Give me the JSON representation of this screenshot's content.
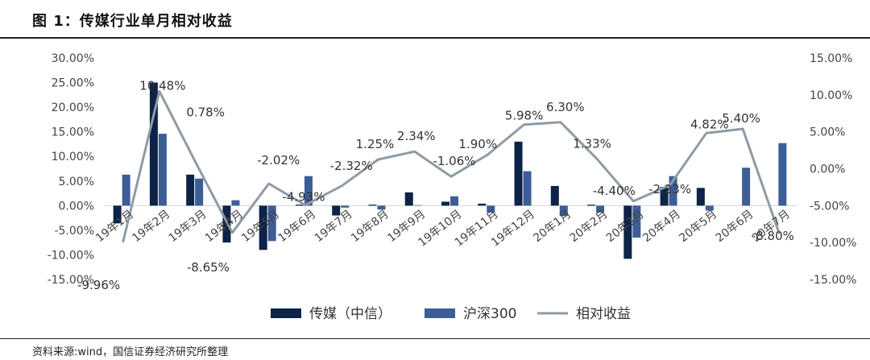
{
  "title": "图 1：传媒行业单月相对收益",
  "source": "资料来源:wind，国信证券经济研究所整理",
  "chart_data": {
    "type": "bar",
    "categories": [
      "19年1月",
      "19年2月",
      "19年3月",
      "19年4月",
      "19年5月",
      "19年6月",
      "19年7月",
      "19年8月",
      "19年9月",
      "19年10月",
      "19年11月",
      "19年12月",
      "20年1月",
      "20年2月",
      "20年3月",
      "20年4月",
      "20年5月",
      "20年6月",
      "20年7月"
    ],
    "series": [
      {
        "name": "传媒（中信）",
        "type": "bar",
        "axis": "left",
        "color": "#0d2347",
        "values": [
          -3.6,
          25.0,
          6.3,
          -7.5,
          -9.0,
          0.2,
          -2.0,
          0.2,
          2.7,
          0.8,
          0.4,
          13.0,
          4.0,
          0.2,
          -10.8,
          3.8,
          3.6,
          0.0,
          0.0
        ]
      },
      {
        "name": "沪深300",
        "type": "bar",
        "axis": "left",
        "color": "#3d5d97",
        "values": [
          6.3,
          14.6,
          5.5,
          1.1,
          -7.2,
          6.0,
          -0.4,
          -0.8,
          0.1,
          1.9,
          -1.4,
          7.0,
          -2.1,
          -1.4,
          -6.5,
          6.0,
          -1.0,
          7.7,
          12.7
        ]
      },
      {
        "name": "相对收益",
        "type": "line",
        "axis": "right",
        "color": "#8e9ba6",
        "values": [
          -9.96,
          10.48,
          0.78,
          -8.65,
          -2.02,
          -4.93,
          -2.32,
          1.25,
          2.34,
          -1.06,
          1.9,
          5.98,
          6.3,
          1.33,
          -4.4,
          -2.23,
          4.82,
          5.4,
          -8.8
        ]
      }
    ],
    "data_labels": [
      "-9.96%",
      "10.48%",
      "0.78%",
      "-8.65%",
      "-2.02%",
      "-4.93%",
      "-2.32%",
      "1.25%",
      "2.34%",
      "-1.06%",
      "1.90%",
      "5.98%",
      "6.30%",
      "1.33%",
      "-4.40%",
      "-2.23%",
      "4.82%",
      "5.40%",
      "-8.80%"
    ],
    "left_axis": {
      "min": -15,
      "max": 30,
      "step": 5,
      "ticks": [
        "-15.00%",
        "-10.00%",
        "-5.00%",
        "0.00%",
        "5.00%",
        "10.00%",
        "15.00%",
        "20.00%",
        "25.00%",
        "30.00%"
      ]
    },
    "right_axis": {
      "min": -15,
      "max": 15,
      "step": 5,
      "ticks": [
        "-15.00%",
        "-10.00%",
        "-5.00%",
        "0.00%",
        "5.00%",
        "10.00%",
        "15.00%"
      ]
    },
    "legend": [
      "传媒（中信）",
      "沪深300",
      "相对收益"
    ],
    "legend_position": "bottom"
  }
}
